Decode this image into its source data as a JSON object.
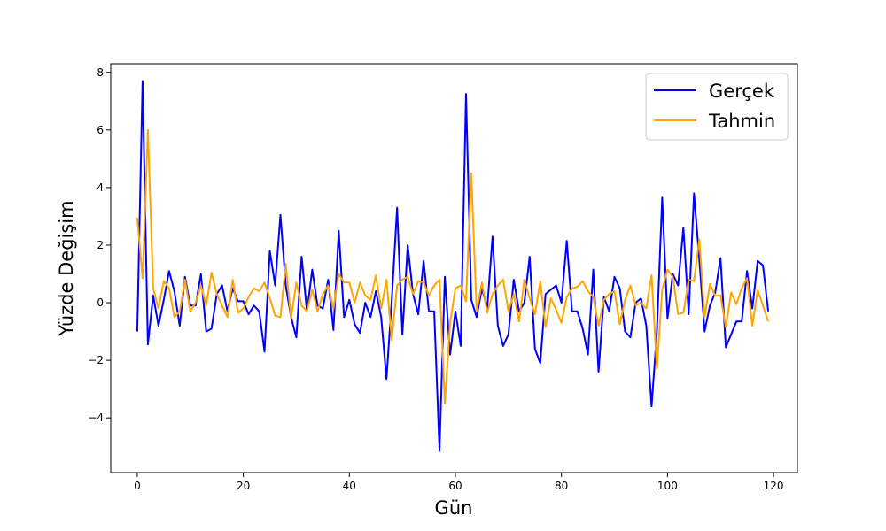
{
  "chart_data": {
    "type": "line",
    "title": "",
    "xlabel": "Gün",
    "ylabel": "Yüzde Değişim",
    "xlim": [
      -5,
      124.5
    ],
    "ylim": [
      -5.9,
      8.3
    ],
    "xticks": [
      0,
      20,
      40,
      60,
      80,
      100,
      120
    ],
    "xtick_labels": [
      "0",
      "20",
      "40",
      "60",
      "80",
      "100",
      "120"
    ],
    "yticks": [
      -4,
      -2,
      0,
      2,
      4,
      6,
      8
    ],
    "ytick_labels": [
      "−4",
      "−2",
      "0",
      "2",
      "4",
      "6",
      "8"
    ],
    "grid": false,
    "legend_position": "top-right",
    "series": [
      {
        "name": "Gerçek",
        "color": "#0000ff",
        "values": [
          -1.0,
          7.7,
          -1.45,
          0.25,
          -0.8,
          0.1,
          1.1,
          0.4,
          -0.8,
          0.9,
          -0.1,
          -0.1,
          1.0,
          -1.0,
          -0.9,
          0.3,
          0.6,
          -0.3,
          0.5,
          0.05,
          0.05,
          -0.4,
          -0.1,
          -0.3,
          -1.7,
          1.8,
          0.6,
          3.05,
          0.6,
          -0.5,
          -1.2,
          1.6,
          -0.3,
          1.15,
          -0.1,
          -0.2,
          0.8,
          -0.95,
          2.5,
          -0.5,
          0.1,
          -0.75,
          -1.05,
          0.0,
          -0.5,
          0.4,
          -0.5,
          -2.65,
          0.1,
          3.3,
          -1.1,
          2.0,
          0.3,
          -0.4,
          1.45,
          -0.3,
          -0.3,
          -5.15,
          0.9,
          -1.8,
          -0.3,
          -1.5,
          7.25,
          0.1,
          -0.5,
          0.5,
          -0.2,
          2.3,
          -0.8,
          -1.5,
          -1.1,
          0.8,
          -0.3,
          0.0,
          1.6,
          -1.6,
          -2.1,
          0.3,
          0.45,
          0.6,
          0.0,
          2.15,
          -0.3,
          -0.3,
          -0.9,
          -1.8,
          1.15,
          -2.4,
          0.2,
          -0.3,
          0.9,
          0.5,
          -1.0,
          -1.2,
          0.0,
          0.15,
          -0.8,
          -3.6,
          -1.0,
          3.65,
          -0.55,
          1.0,
          0.6,
          2.6,
          -0.4,
          3.8,
          1.5,
          -1.0,
          -0.1,
          0.35,
          1.55,
          -1.55,
          -1.1,
          -0.65,
          -0.65,
          1.1,
          -0.2,
          1.45,
          1.3,
          -0.3
        ]
      },
      {
        "name": "Tahmin",
        "color": "#ffa500",
        "values": [
          2.95,
          0.85,
          6.0,
          0.5,
          -0.2,
          0.75,
          0.5,
          -0.5,
          -0.3,
          0.8,
          -0.3,
          0.0,
          0.6,
          -0.1,
          1.05,
          0.3,
          -0.1,
          -0.5,
          0.8,
          -0.35,
          -0.2,
          0.2,
          0.5,
          0.4,
          0.7,
          0.15,
          -0.45,
          -0.5,
          1.35,
          -0.55,
          0.7,
          -0.1,
          -0.3,
          0.45,
          -0.3,
          0.3,
          0.6,
          -0.2,
          1.0,
          0.7,
          0.7,
          0.0,
          0.7,
          0.25,
          0.1,
          0.95,
          -0.2,
          0.8,
          -1.3,
          0.6,
          0.8,
          0.9,
          0.3,
          0.75,
          0.7,
          0.25,
          0.6,
          0.8,
          -3.5,
          -0.7,
          0.5,
          0.6,
          0.05,
          4.5,
          -0.3,
          0.7,
          -0.35,
          0.3,
          0.6,
          0.8,
          -0.3,
          0.3,
          -0.65,
          0.8,
          0.15,
          -0.4,
          0.75,
          -0.85,
          0.15,
          -0.25,
          -0.7,
          0.2,
          0.5,
          0.55,
          0.75,
          0.4,
          0.2,
          -0.8,
          0.1,
          0.3,
          0.4,
          -0.75,
          0.1,
          0.6,
          -0.1,
          0.0,
          -0.2,
          0.95,
          -2.3,
          0.45,
          1.15,
          0.9,
          -0.4,
          -0.35,
          0.8,
          0.75,
          2.2,
          -0.5,
          0.65,
          0.25,
          0.25,
          -0.85,
          0.35,
          -0.05,
          0.5,
          0.85,
          -0.8,
          0.45,
          -0.1,
          -0.65
        ]
      }
    ]
  }
}
